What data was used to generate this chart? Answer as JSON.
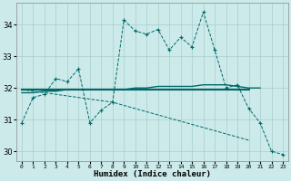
{
  "xlabel": "Humidex (Indice chaleur)",
  "x_values": [
    0,
    1,
    2,
    3,
    4,
    5,
    6,
    7,
    8,
    9,
    10,
    11,
    12,
    13,
    14,
    15,
    16,
    17,
    18,
    19,
    20,
    21,
    22,
    23
  ],
  "line1_y": [
    30.9,
    31.7,
    31.8,
    32.3,
    32.2,
    32.6,
    30.9,
    31.3,
    31.55,
    34.15,
    33.8,
    33.7,
    33.85,
    33.2,
    33.6,
    33.3,
    34.4,
    33.2,
    32.0,
    32.1,
    31.35,
    30.9,
    30.0,
    29.9
  ],
  "line2_y": [
    31.85,
    31.85,
    31.9,
    31.9,
    31.95,
    31.95,
    31.95,
    31.95,
    31.95,
    31.95,
    32.0,
    32.0,
    32.05,
    32.05,
    32.05,
    32.05,
    32.1,
    32.1,
    32.1,
    32.05,
    32.0,
    32.0,
    null,
    null
  ],
  "line3_y": [
    31.95,
    31.95,
    31.95,
    31.95,
    31.95,
    31.95,
    31.95,
    31.95,
    31.95,
    31.95,
    31.95,
    31.95,
    31.95,
    31.95,
    31.95,
    31.95,
    31.95,
    31.95,
    31.95,
    31.95,
    31.95,
    null,
    null,
    null
  ],
  "line4_y": [
    31.95,
    31.9,
    31.85,
    31.8,
    31.75,
    31.7,
    31.65,
    31.6,
    31.55,
    31.45,
    31.35,
    31.25,
    31.15,
    31.05,
    30.95,
    30.85,
    30.75,
    30.65,
    30.55,
    30.45,
    30.35,
    null,
    null,
    null
  ],
  "line_color": "#006868",
  "bg_color": "#cceaea",
  "grid_color": "#aacccc",
  "ylim": [
    29.7,
    34.7
  ],
  "yticks": [
    30,
    31,
    32,
    33,
    34
  ],
  "xlim": [
    -0.5,
    23.5
  ]
}
